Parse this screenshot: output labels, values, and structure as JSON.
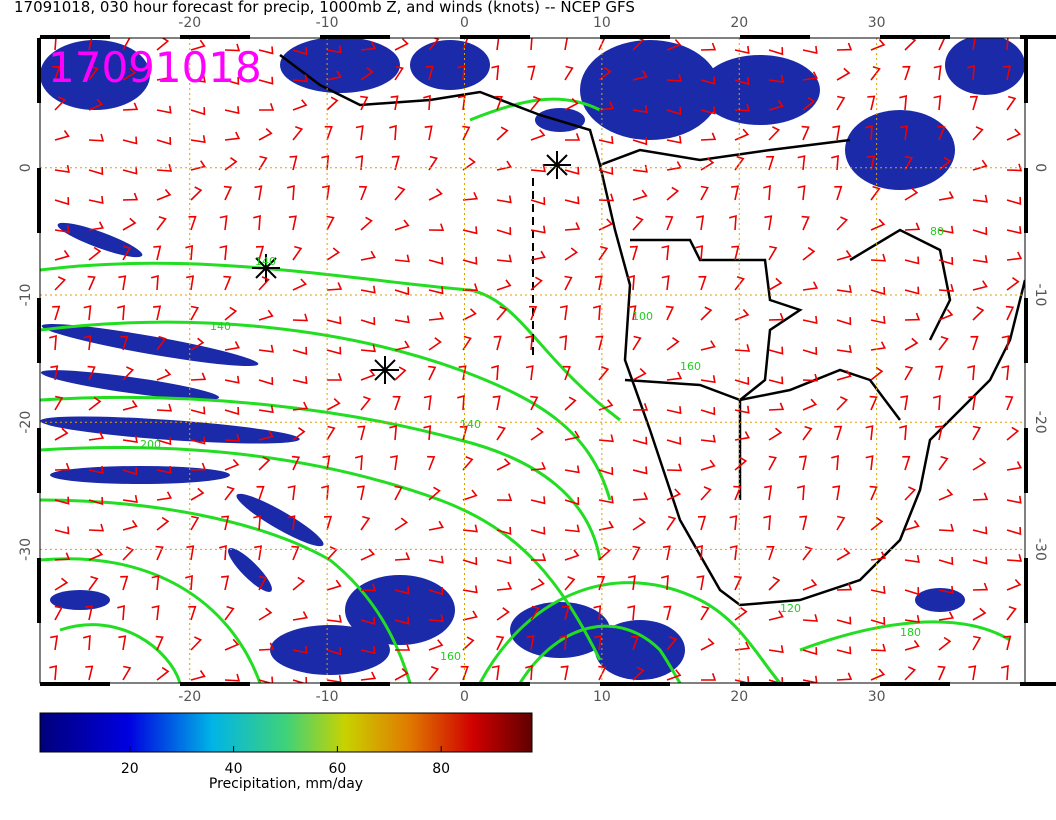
{
  "header": {
    "title": "17091018, 030 hour forecast for precip, 1000mb Z, and winds (knots) -- NCEP GFS"
  },
  "stamp": "17091018",
  "map": {
    "lon_range": [
      -30.9,
      40.8
    ],
    "lat_range": [
      10.2,
      -40.5
    ],
    "lon_ticks": [
      -20,
      -10,
      0,
      10,
      20,
      30
    ],
    "lat_ticks": [
      0,
      -10,
      -20,
      -30
    ]
  },
  "contour_labels": [
    "140",
    "140",
    "200",
    "140",
    "100",
    "160",
    "80",
    "120",
    "180",
    "160"
  ],
  "colorbar": {
    "range": [
      2.7,
      97.5
    ],
    "ticks": [
      20,
      40,
      60,
      80
    ],
    "label": "Precipitation, mm/day"
  }
}
